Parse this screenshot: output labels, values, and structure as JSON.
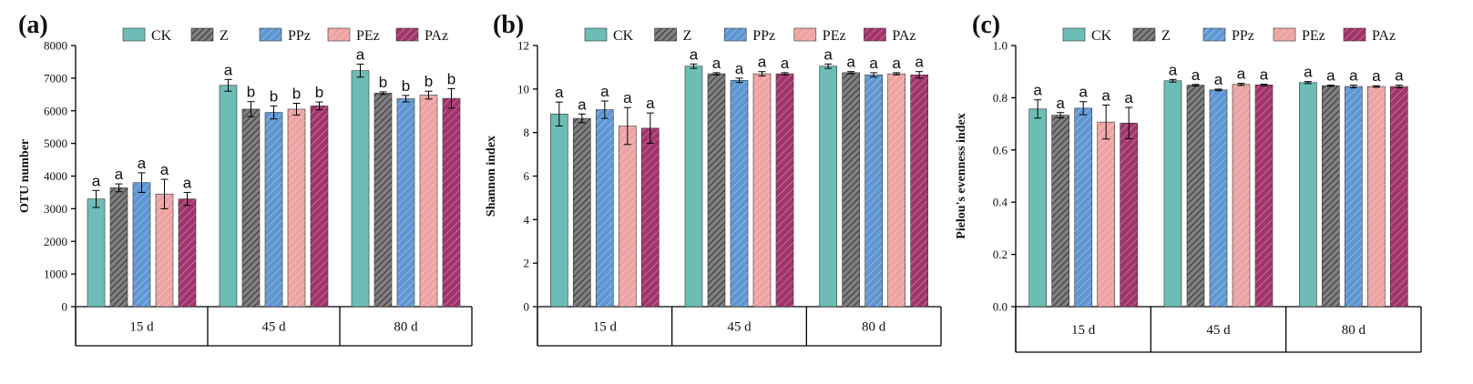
{
  "chart_data": [
    {
      "type": "bar",
      "panel_label": "(a)",
      "ylabel": "OTU number",
      "ylim": [
        0,
        8000
      ],
      "yticks": [
        0,
        1000,
        2000,
        3000,
        4000,
        5000,
        6000,
        7000,
        8000
      ],
      "categories": [
        "15 d",
        "45 d",
        "80 d"
      ],
      "legend_position": "top",
      "series": [
        {
          "name": "CK",
          "values": [
            3300,
            6780,
            7230
          ],
          "errors": [
            260,
            180,
            200
          ],
          "letters": [
            "a",
            "a",
            "a"
          ]
        },
        {
          "name": "Z",
          "values": [
            3640,
            6050,
            6540
          ],
          "errors": [
            120,
            230,
            40
          ],
          "letters": [
            "a",
            "b",
            "b"
          ]
        },
        {
          "name": "PPz",
          "values": [
            3800,
            5950,
            6370
          ],
          "errors": [
            300,
            200,
            100
          ],
          "letters": [
            "a",
            "b",
            "b"
          ]
        },
        {
          "name": "PEz",
          "values": [
            3450,
            6050,
            6480
          ],
          "errors": [
            450,
            180,
            120
          ],
          "letters": [
            "a",
            "b",
            "b"
          ]
        },
        {
          "name": "PAz",
          "values": [
            3300,
            6150,
            6380
          ],
          "errors": [
            200,
            120,
            300
          ],
          "letters": [
            "a",
            "b",
            "b"
          ]
        }
      ]
    },
    {
      "type": "bar",
      "panel_label": "(b)",
      "ylabel": "Shannon index",
      "ylim": [
        0,
        12
      ],
      "yticks": [
        0,
        2,
        4,
        6,
        8,
        10,
        12
      ],
      "categories": [
        "15 d",
        "45 d",
        "80 d"
      ],
      "legend_position": "top",
      "series": [
        {
          "name": "CK",
          "values": [
            8.85,
            11.05,
            11.05
          ],
          "errors": [
            0.55,
            0.1,
            0.1
          ],
          "letters": [
            "a",
            "a",
            "a"
          ]
        },
        {
          "name": "Z",
          "values": [
            8.65,
            10.7,
            10.75
          ],
          "errors": [
            0.2,
            0.05,
            0.05
          ],
          "letters": [
            "a",
            "a",
            "a"
          ]
        },
        {
          "name": "PPz",
          "values": [
            9.05,
            10.4,
            10.65
          ],
          "errors": [
            0.4,
            0.1,
            0.1
          ],
          "letters": [
            "a",
            "a",
            "a"
          ]
        },
        {
          "name": "PEz",
          "values": [
            8.3,
            10.7,
            10.7
          ],
          "errors": [
            0.85,
            0.1,
            0.05
          ],
          "letters": [
            "a",
            "a",
            "a"
          ]
        },
        {
          "name": "PAz",
          "values": [
            8.2,
            10.7,
            10.65
          ],
          "errors": [
            0.7,
            0.05,
            0.15
          ],
          "letters": [
            "a",
            "a",
            "a"
          ]
        }
      ]
    },
    {
      "type": "bar",
      "panel_label": "(c)",
      "ylabel": "Pielou's evenness index",
      "ylim": [
        0,
        1.0
      ],
      "yticks": [
        "0.0",
        "0.2",
        "0.4",
        "0.6",
        "0.8",
        "1.0"
      ],
      "categories": [
        "15 d",
        "45 d",
        "80 d"
      ],
      "legend_position": "top",
      "series": [
        {
          "name": "CK",
          "values": [
            0.757,
            0.865,
            0.858
          ],
          "errors": [
            0.035,
            0.005,
            0.004
          ],
          "letters": [
            "a",
            "a",
            "a"
          ]
        },
        {
          "name": "Z",
          "values": [
            0.733,
            0.848,
            0.846
          ],
          "errors": [
            0.01,
            0.003,
            0.002
          ],
          "letters": [
            "a",
            "a",
            "a"
          ]
        },
        {
          "name": "PPz",
          "values": [
            0.76,
            0.83,
            0.843
          ],
          "errors": [
            0.025,
            0.003,
            0.005
          ],
          "letters": [
            "a",
            "a",
            "a"
          ]
        },
        {
          "name": "PEz",
          "values": [
            0.707,
            0.851,
            0.843
          ],
          "errors": [
            0.065,
            0.004,
            0.003
          ],
          "letters": [
            "a",
            "a",
            "a"
          ]
        },
        {
          "name": "PAz",
          "values": [
            0.703,
            0.849,
            0.843
          ],
          "errors": [
            0.06,
            0.003,
            0.005
          ],
          "letters": [
            "a",
            "a",
            "a"
          ]
        }
      ]
    }
  ],
  "series_styles": [
    {
      "name": "CK",
      "color": "#6cbdb6",
      "pattern": "none"
    },
    {
      "name": "Z",
      "color": "#7f7f7f",
      "pattern": "hatch-dark"
    },
    {
      "name": "PPz",
      "color": "#5f97d3",
      "pattern": "hatch-light"
    },
    {
      "name": "PEz",
      "color": "#eea3a3",
      "pattern": "hatch-light"
    },
    {
      "name": "PAz",
      "color": "#a2346c",
      "pattern": "hatch-light"
    }
  ]
}
